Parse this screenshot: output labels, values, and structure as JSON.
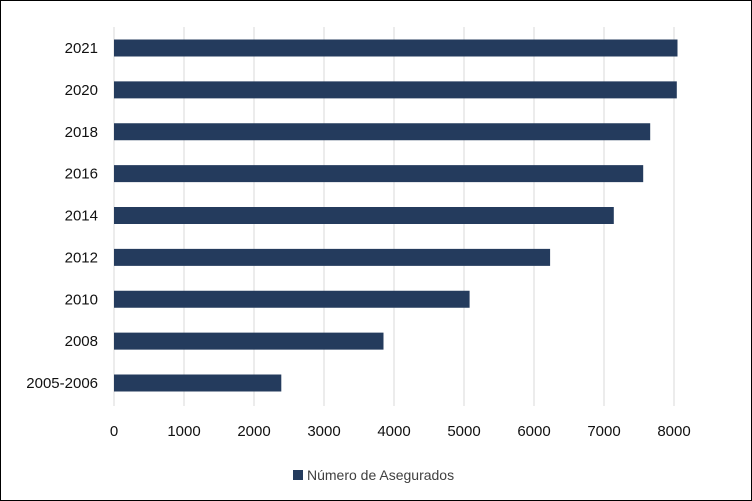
{
  "chart_data": {
    "type": "bar",
    "orientation": "horizontal",
    "categories": [
      "2005-2006",
      "2008",
      "2010",
      "2012",
      "2014",
      "2016",
      "2018",
      "2020",
      "2021"
    ],
    "series": [
      {
        "name": "Número de Asegurados",
        "values": [
          2390,
          3850,
          5080,
          6230,
          7140,
          7560,
          7660,
          8040,
          8050
        ]
      }
    ],
    "x_ticks": [
      0,
      1000,
      2000,
      3000,
      4000,
      5000,
      6000,
      7000,
      8000
    ],
    "xlim": [
      0,
      8500
    ],
    "grid": "vertical",
    "legend": "bottom",
    "colors": {
      "bar": "#243b5d",
      "grid": "#d9d9d9",
      "frame": "#000000"
    }
  }
}
